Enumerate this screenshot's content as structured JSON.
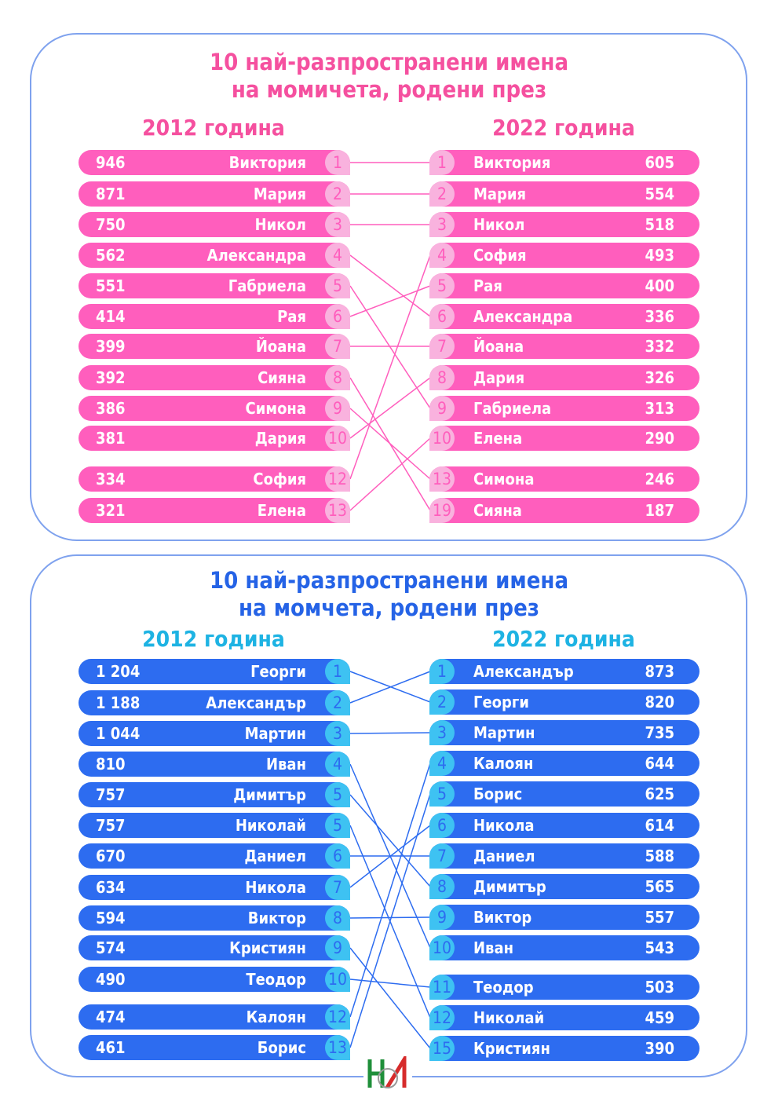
{
  "colors": {
    "girls_bar": "#ff5ebd",
    "girls_badge": "#f9b2de",
    "girls_badge_text": "#ff5ebd",
    "girls_title": "#f5509f",
    "boys_bar": "#2d6cf0",
    "boys_badge": "#3ec2f2",
    "boys_badge_text": "#2d6cf0",
    "boys_title": "#2563e6",
    "boys_year": "#1eb3e3",
    "frame": "#7fa2ee"
  },
  "chart_data": [
    {
      "type": "table",
      "title_line1": "10 най-разпространени имена",
      "title_line2": "на момичета, родени през",
      "left_year": "2012 година",
      "right_year": "2022 година",
      "left": [
        {
          "count": "946",
          "name": "Виктория",
          "rank": "1"
        },
        {
          "count": "871",
          "name": "Мария",
          "rank": "2"
        },
        {
          "count": "750",
          "name": "Никол",
          "rank": "3"
        },
        {
          "count": "562",
          "name": "Александра",
          "rank": "4"
        },
        {
          "count": "551",
          "name": "Габриела",
          "rank": "5"
        },
        {
          "count": "414",
          "name": "Рая",
          "rank": "6"
        },
        {
          "count": "399",
          "name": "Йоана",
          "rank": "7"
        },
        {
          "count": "392",
          "name": "Сияна",
          "rank": "8"
        },
        {
          "count": "386",
          "name": "Симона",
          "rank": "9"
        },
        {
          "count": "381",
          "name": "Дария",
          "rank": "10"
        },
        {
          "count": "334",
          "name": "София",
          "rank": "12"
        },
        {
          "count": "321",
          "name": "Елена",
          "rank": "13"
        }
      ],
      "right": [
        {
          "count": "605",
          "name": "Виктория",
          "rank": "1"
        },
        {
          "count": "554",
          "name": "Мария",
          "rank": "2"
        },
        {
          "count": "518",
          "name": "Никол",
          "rank": "3"
        },
        {
          "count": "493",
          "name": "София",
          "rank": "4"
        },
        {
          "count": "400",
          "name": "Рая",
          "rank": "5"
        },
        {
          "count": "336",
          "name": "Александра",
          "rank": "6"
        },
        {
          "count": "332",
          "name": "Йоана",
          "rank": "7"
        },
        {
          "count": "326",
          "name": "Дария",
          "rank": "8"
        },
        {
          "count": "313",
          "name": "Габриела",
          "rank": "9"
        },
        {
          "count": "290",
          "name": "Елена",
          "rank": "10"
        },
        {
          "count": "246",
          "name": "Симона",
          "rank": "13"
        },
        {
          "count": "187",
          "name": "Сияна",
          "rank": "19"
        }
      ]
    },
    {
      "type": "table",
      "title_line1": "10 най-разпространени имена",
      "title_line2": "на момчета, родени през",
      "left_year": "2012 година",
      "right_year": "2022 година",
      "left": [
        {
          "count": "1 204",
          "name": "Георги",
          "rank": "1"
        },
        {
          "count": "1 188",
          "name": "Александър",
          "rank": "2"
        },
        {
          "count": "1 044",
          "name": "Мартин",
          "rank": "3"
        },
        {
          "count": "810",
          "name": "Иван",
          "rank": "4"
        },
        {
          "count": "757",
          "name": "Димитър",
          "rank": "5"
        },
        {
          "count": "757",
          "name": "Николай",
          "rank": "5"
        },
        {
          "count": "670",
          "name": "Даниел",
          "rank": "6"
        },
        {
          "count": "634",
          "name": "Никола",
          "rank": "7"
        },
        {
          "count": "594",
          "name": "Виктор",
          "rank": "8"
        },
        {
          "count": "574",
          "name": "Кристиян",
          "rank": "9"
        },
        {
          "count": "490",
          "name": "Теодор",
          "rank": "10"
        },
        {
          "count": "474",
          "name": "Калоян",
          "rank": "12"
        },
        {
          "count": "461",
          "name": "Борис",
          "rank": "13"
        }
      ],
      "right": [
        {
          "count": "873",
          "name": "Александър",
          "rank": "1"
        },
        {
          "count": "820",
          "name": "Георги",
          "rank": "2"
        },
        {
          "count": "735",
          "name": "Мартин",
          "rank": "3"
        },
        {
          "count": "644",
          "name": "Калоян",
          "rank": "4"
        },
        {
          "count": "625",
          "name": "Борис",
          "rank": "5"
        },
        {
          "count": "614",
          "name": "Никола",
          "rank": "6"
        },
        {
          "count": "588",
          "name": "Даниел",
          "rank": "7"
        },
        {
          "count": "565",
          "name": "Димитър",
          "rank": "8"
        },
        {
          "count": "557",
          "name": "Виктор",
          "rank": "9"
        },
        {
          "count": "543",
          "name": "Иван",
          "rank": "10"
        },
        {
          "count": "503",
          "name": "Теодор",
          "rank": "11"
        },
        {
          "count": "459",
          "name": "Николай",
          "rank": "12"
        },
        {
          "count": "390",
          "name": "Кристиян",
          "rank": "15"
        }
      ]
    }
  ],
  "logo": "НИ"
}
